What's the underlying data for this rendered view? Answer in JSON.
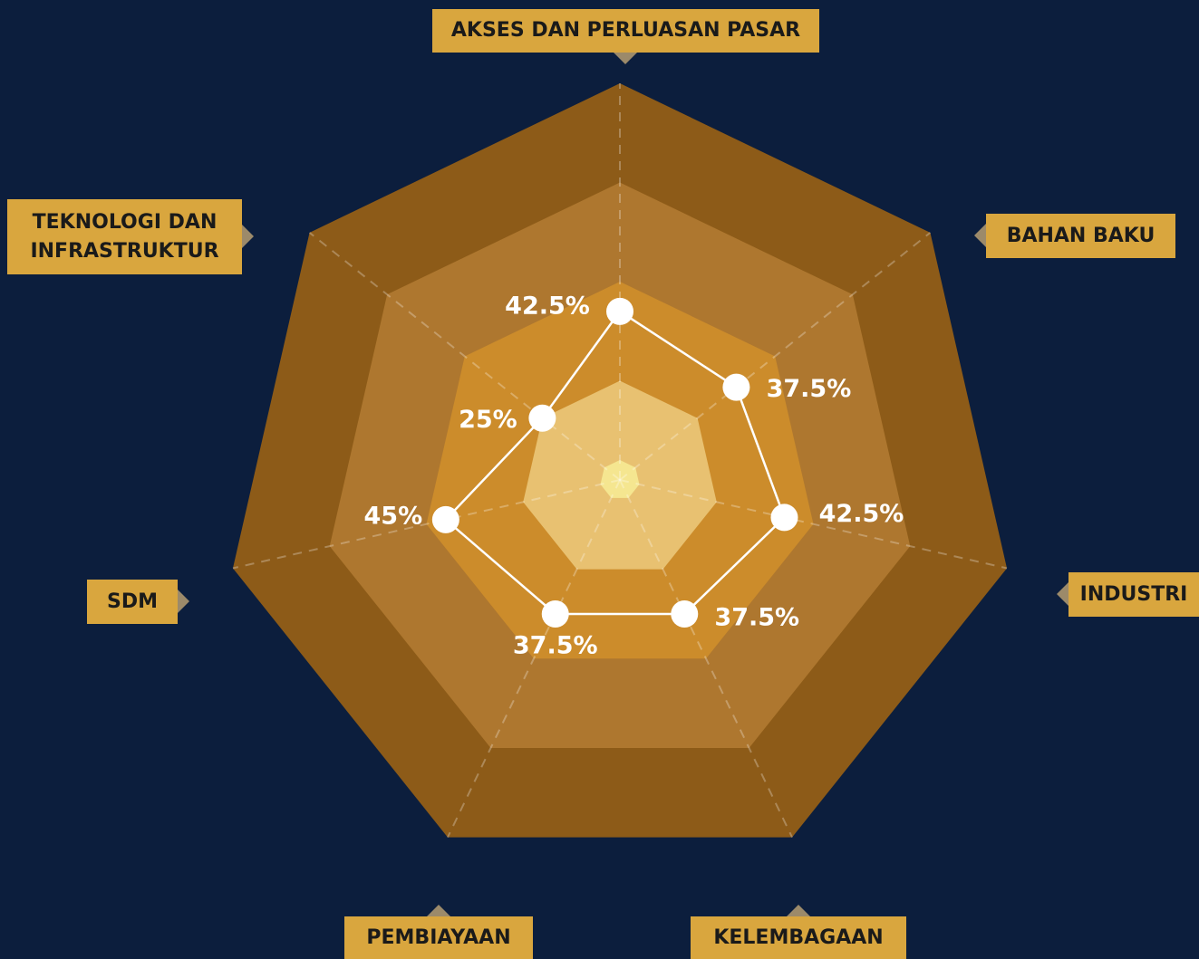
{
  "chart_data": {
    "type": "radar",
    "categories": [
      "AKSES DAN PERLUASAN PASAR",
      "BAHAN BAKU",
      "INDUSTRI",
      "KELEMBAGAAN",
      "PEMBIAYAAN",
      "SDM",
      "TEKNOLOGI DAN INFRASTRUKTUR"
    ],
    "series": [
      {
        "color": "#ffffff",
        "values": [
          42.5,
          37.5,
          42.5,
          37.5,
          37.5,
          45,
          25
        ],
        "value_labels": [
          "42.5%",
          "37.5%",
          "42.5%",
          "37.5%",
          "37.5%",
          "45%",
          "25%"
        ]
      }
    ],
    "rlim": [
      0,
      100
    ],
    "rticks": [
      25,
      50,
      75,
      100
    ],
    "ring_colors": [
      "#e8c171",
      "#cc8c2b",
      "#ae772f",
      "#8d5b18"
    ],
    "label_color": "#d9a63e"
  }
}
